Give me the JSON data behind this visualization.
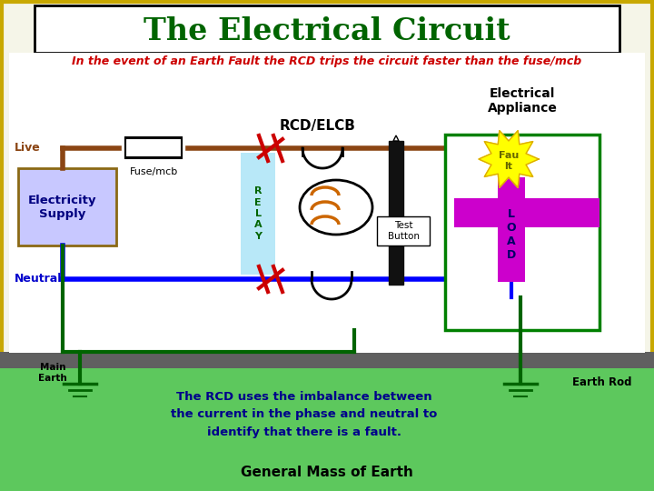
{
  "title": "The Electrical Circuit",
  "subtitle": "In the event of an Earth Fault the RCD trips the circuit faster than the fuse/mcb",
  "slide_bg": "#f5f5e8",
  "title_color": "#006400",
  "subtitle_color": "#cc0000",
  "live_wire_color": "#8B4513",
  "neutral_wire_color": "#0000ff",
  "earth_wire_color": "#006400",
  "rcd_label": "RCD/ELCB",
  "appliance_label": "Electrical\nAppliance",
  "live_label": "Live",
  "neutral_label": "Neutral",
  "fuse_label": "Fuse/mcb",
  "supply_label": "Electricity\nSupply",
  "relay_label": "R\nE\nL\nA\nY",
  "test_label": "Test\nButton",
  "load_label": "L\nO\nA\nD",
  "fault_label": "Fau\nlt",
  "main_earth_label": "Main\nEarth",
  "earth_rod_label": "Earth Rod",
  "general_earth_label": "General Mass of Earth",
  "rcd_text": "The RCD uses the imbalance between\nthe current in the phase and neutral to\nidentify that there is a fault.",
  "rcd_text_color": "#00008B",
  "supply_color": "#c8c8ff",
  "supply_border": "#8B6914"
}
